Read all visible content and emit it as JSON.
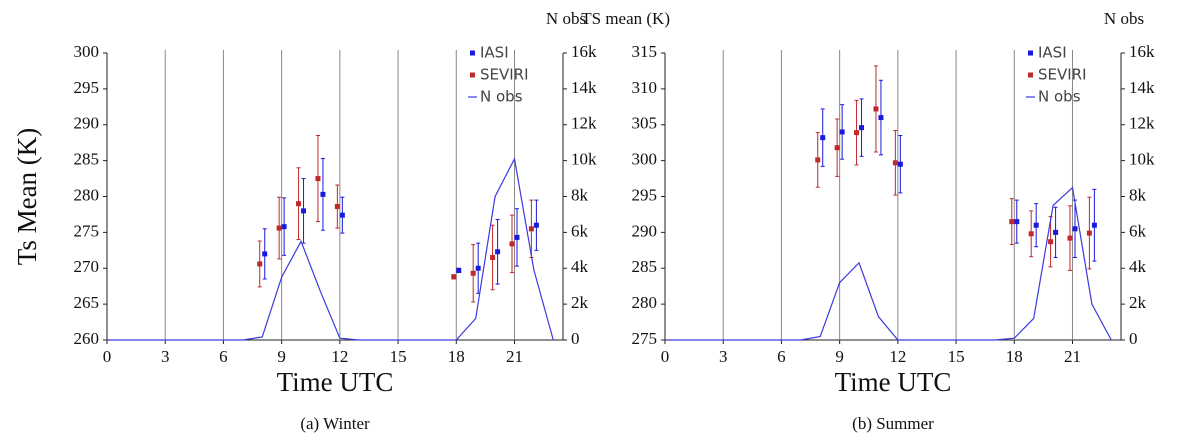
{
  "chart_data": [
    {
      "type": "scatter-errorbar",
      "xlabel": "Time UTC",
      "ylabel": "Ts Mean (K)",
      "y2label": "N obs",
      "caption": "(a) Winter",
      "xlim": [
        0,
        23.5
      ],
      "xticks": [
        0,
        3,
        6,
        9,
        12,
        15,
        18,
        21
      ],
      "ylim": [
        260,
        300
      ],
      "yticks": [
        260,
        265,
        270,
        275,
        280,
        285,
        290,
        295,
        300
      ],
      "y2lim": [
        0,
        16000
      ],
      "y2ticks": [
        0,
        {
          "value": 2000,
          "label": "2k"
        },
        {
          "value": 4000,
          "label": "4k"
        },
        {
          "value": 6000,
          "label": "6k"
        },
        {
          "value": 8000,
          "label": "8k"
        },
        {
          "value": 10000,
          "label": "10k"
        },
        {
          "value": 12000,
          "label": "12k"
        },
        {
          "value": 14000,
          "label": "14k"
        },
        {
          "value": 16000,
          "label": "16k"
        }
      ],
      "grid": "x",
      "legend": "upper right",
      "series": [
        {
          "name": "IASI",
          "color": "#1a1adc",
          "x": [
            8,
            9,
            10,
            11,
            12,
            18,
            19,
            20,
            21,
            22
          ],
          "values": [
            272,
            275.8,
            278,
            280.3,
            277.4,
            269.7,
            270,
            272.3,
            274.3,
            276
          ],
          "errors": [
            3.5,
            4,
            4.5,
            5,
            2.5,
            0.3,
            3.5,
            4.5,
            4,
            3.5
          ]
        },
        {
          "name": "SEVIRI",
          "color": "#c0282a",
          "x": [
            8,
            9,
            10,
            11,
            12,
            18,
            19,
            20,
            21,
            22
          ],
          "values": [
            270.6,
            275.6,
            279,
            282.5,
            278.6,
            268.8,
            269.3,
            271.5,
            273.4,
            275.5
          ],
          "errors": [
            3.2,
            4.3,
            5,
            6,
            3,
            0.3,
            4,
            4.5,
            4,
            4
          ]
        },
        {
          "name": "N obs",
          "color": "#3a3ae0",
          "axis": "y2",
          "x": [
            0,
            1,
            2,
            3,
            4,
            5,
            6,
            7,
            8,
            9,
            10,
            11,
            12,
            13,
            14,
            15,
            16,
            17,
            18,
            19,
            20,
            21,
            22,
            23
          ],
          "values": [
            0,
            0,
            0,
            0,
            0,
            0,
            0,
            0,
            170,
            3500,
            5500,
            2700,
            100,
            0,
            0,
            0,
            0,
            0,
            0,
            1200,
            8000,
            10100,
            3900,
            0
          ]
        }
      ]
    },
    {
      "type": "scatter-errorbar",
      "xlabel": "Time UTC",
      "ylabel": "TS mean (K)",
      "y2label": "N obs",
      "caption": "(b) Summer",
      "xlim": [
        0,
        23.5
      ],
      "xticks": [
        0,
        3,
        6,
        9,
        12,
        15,
        18,
        21
      ],
      "ylim": [
        275,
        315
      ],
      "yticks": [
        275,
        280,
        285,
        290,
        295,
        300,
        305,
        310,
        315
      ],
      "y2lim": [
        0,
        16000
      ],
      "y2ticks": [
        0,
        {
          "value": 2000,
          "label": "2k"
        },
        {
          "value": 4000,
          "label": "4k"
        },
        {
          "value": 6000,
          "label": "6k"
        },
        {
          "value": 8000,
          "label": "8k"
        },
        {
          "value": 10000,
          "label": "10k"
        },
        {
          "value": 12000,
          "label": "12k"
        },
        {
          "value": 14000,
          "label": "14k"
        },
        {
          "value": 16000,
          "label": "16k"
        }
      ],
      "grid": "x",
      "legend": "upper right",
      "series": [
        {
          "name": "IASI",
          "color": "#1a1adc",
          "x": [
            8,
            9,
            10,
            11,
            12,
            18,
            19,
            20,
            21,
            22
          ],
          "values": [
            303.2,
            304,
            304.6,
            306,
            299.5,
            291.5,
            291,
            290,
            290.5,
            291
          ],
          "errors": [
            4,
            3.8,
            4,
            5.2,
            4,
            3,
            3,
            3.5,
            4,
            5
          ]
        },
        {
          "name": "SEVIRI",
          "color": "#c0282a",
          "x": [
            8,
            9,
            10,
            11,
            12,
            18,
            19,
            20,
            21,
            22
          ],
          "values": [
            300.1,
            301.8,
            303.9,
            307.2,
            299.7,
            291.5,
            289.8,
            288.7,
            289.2,
            289.9
          ],
          "errors": [
            3.8,
            4,
            4.5,
            6,
            4.5,
            3.2,
            3.2,
            3.5,
            4.5,
            5
          ]
        },
        {
          "name": "N obs",
          "color": "#3a3ae0",
          "axis": "y2",
          "x": [
            0,
            1,
            2,
            3,
            4,
            5,
            6,
            7,
            8,
            9,
            10,
            11,
            12,
            13,
            14,
            15,
            16,
            17,
            18,
            19,
            20,
            21,
            22,
            23
          ],
          "values": [
            0,
            0,
            0,
            0,
            0,
            0,
            0,
            0,
            200,
            3200,
            4300,
            1300,
            0,
            0,
            0,
            0,
            0,
            0,
            100,
            1200,
            7500,
            8500,
            2000,
            0
          ]
        }
      ]
    }
  ]
}
